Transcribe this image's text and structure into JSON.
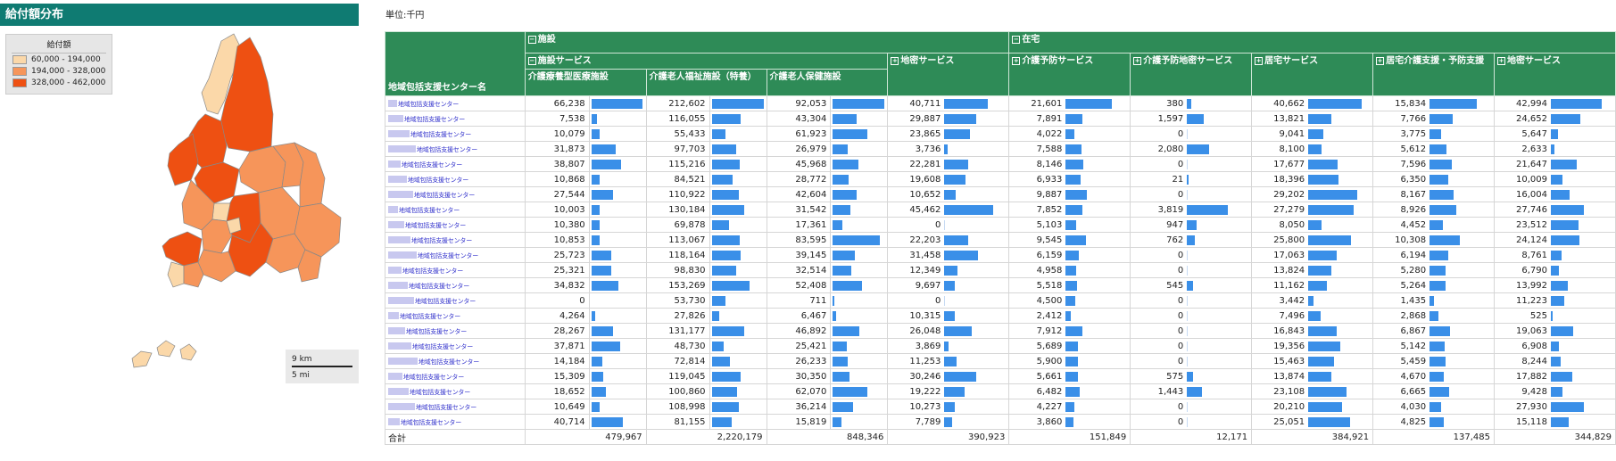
{
  "panel_title": "給付額分布",
  "legend": {
    "title": "給付額",
    "items": [
      {
        "label": "60,000 - 194,000",
        "color": "#fbd8a9"
      },
      {
        "label": "194,000 - 328,000",
        "color": "#f6955a"
      },
      {
        "label": "328,000 - 462,000",
        "color": "#ee5012"
      }
    ]
  },
  "scale": {
    "km": "9 km",
    "mi": "5 mi"
  },
  "unit_label": "単位:千円",
  "colors": {
    "header": "#2e8b57",
    "bar": "#3a8fe8",
    "name_link": "#3333cc"
  },
  "header": {
    "name_col": "地域包括支援センター名",
    "group_facility": "施設",
    "group_home": "在宅",
    "sub_facility_service": "施設サービス",
    "cols": [
      {
        "key": "iryo",
        "label": "介護療養型医療施設"
      },
      {
        "key": "rojin",
        "label": "介護老人福祉施設（特養）"
      },
      {
        "key": "hoken",
        "label": "介護老人保健施設"
      },
      {
        "key": "chiiki1",
        "label": "地密サービス"
      },
      {
        "key": "yobo",
        "label": "介護予防サービス"
      },
      {
        "key": "yobo_chiiki",
        "label": "介護予防地密サービス"
      },
      {
        "key": "kyotaku",
        "label": "居宅サービス"
      },
      {
        "key": "kyotaku_shien",
        "label": "居宅介護支援・予防支援"
      },
      {
        "key": "chiiki2",
        "label": "地密サービス"
      }
    ]
  },
  "rows": [
    {
      "name": "地域包括支援センター",
      "values": [
        66238,
        212602,
        92053,
        40711,
        21601,
        380,
        40662,
        15834,
        42994
      ]
    },
    {
      "name": "地域包括支援センター",
      "values": [
        7538,
        116055,
        43304,
        29887,
        7891,
        1597,
        13821,
        7766,
        24652
      ]
    },
    {
      "name": "地域包括支援センター",
      "values": [
        10079,
        55433,
        61923,
        23865,
        4022,
        0,
        9041,
        3775,
        5647
      ]
    },
    {
      "name": "地域包括支援センター",
      "values": [
        31873,
        97703,
        26979,
        3736,
        7588,
        2080,
        8100,
        5612,
        2633
      ]
    },
    {
      "name": "地域包括支援センター",
      "values": [
        38807,
        115216,
        45968,
        22281,
        8146,
        0,
        17677,
        7596,
        21647
      ]
    },
    {
      "name": "地域包括支援センター",
      "values": [
        10868,
        84521,
        28772,
        19608,
        6933,
        21,
        18396,
        6350,
        10009
      ]
    },
    {
      "name": "地域包括支援センター",
      "values": [
        27544,
        110922,
        42604,
        10652,
        9887,
        0,
        29202,
        8167,
        16004
      ]
    },
    {
      "name": "地域包括支援センター",
      "values": [
        10003,
        130184,
        31542,
        45462,
        7852,
        3819,
        27279,
        8926,
        27746
      ]
    },
    {
      "name": "地域包括支援センター",
      "values": [
        10380,
        69878,
        17361,
        0,
        5103,
        947,
        8050,
        4452,
        23512
      ]
    },
    {
      "name": "地域包括支援センター",
      "values": [
        10853,
        113067,
        83595,
        22203,
        9545,
        762,
        25800,
        10308,
        24124
      ]
    },
    {
      "name": "地域包括支援センター",
      "values": [
        25723,
        118164,
        39145,
        31458,
        6159,
        0,
        17063,
        6194,
        8761
      ]
    },
    {
      "name": "地域包括支援センター",
      "values": [
        25321,
        98830,
        32514,
        12349,
        4958,
        0,
        13824,
        5280,
        6790
      ]
    },
    {
      "name": "地域包括支援センター",
      "values": [
        34832,
        153269,
        52408,
        9697,
        5518,
        545,
        11162,
        5264,
        13992
      ]
    },
    {
      "name": "地域包括支援センター",
      "values": [
        0,
        53730,
        711,
        0,
        4500,
        0,
        3442,
        1435,
        11223
      ]
    },
    {
      "name": "地域包括支援センター",
      "values": [
        4264,
        27826,
        6467,
        10315,
        2412,
        0,
        7496,
        2868,
        525
      ]
    },
    {
      "name": "地域包括支援センター",
      "values": [
        28267,
        131177,
        46892,
        26048,
        7912,
        0,
        16843,
        6867,
        19063
      ]
    },
    {
      "name": "地域包括支援センター",
      "values": [
        37871,
        48730,
        25421,
        3869,
        5689,
        0,
        19356,
        5142,
        6908
      ]
    },
    {
      "name": "地域包括支援センター",
      "values": [
        14184,
        72814,
        26233,
        11253,
        5900,
        0,
        15463,
        5459,
        8244
      ]
    },
    {
      "name": "地域包括支援センター",
      "values": [
        15309,
        119045,
        30350,
        30246,
        5661,
        575,
        13874,
        4670,
        17882
      ]
    },
    {
      "name": "地域包括支援センター",
      "values": [
        18652,
        100860,
        62070,
        19222,
        6482,
        1443,
        23108,
        6665,
        9428
      ]
    },
    {
      "name": "地域包括支援センター",
      "values": [
        10649,
        108998,
        36214,
        10273,
        4227,
        0,
        20210,
        4030,
        27930
      ]
    },
    {
      "name": "地域包括支援センター",
      "values": [
        40714,
        81155,
        15819,
        7789,
        3860,
        0,
        25051,
        4825,
        15118
      ]
    }
  ],
  "total": {
    "label": "合計",
    "values": [
      "479,967",
      "2,220,179",
      "848,346",
      "390,923",
      "151,849",
      "12,171",
      "384,921",
      "137,485",
      "344,829"
    ]
  }
}
